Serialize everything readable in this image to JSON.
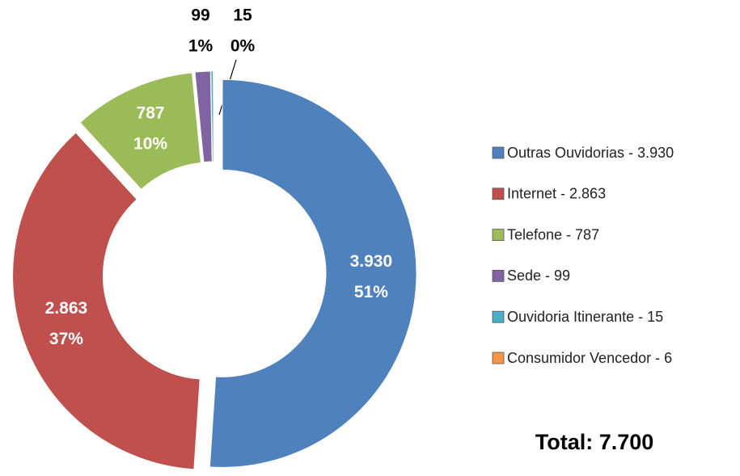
{
  "chart_data": {
    "type": "donut",
    "categories": [
      "Outras Ouvidorias - 3.930",
      "Internet - 2.863",
      "Telefone - 787",
      "Sede - 99",
      "Ouvidoria Itinerante - 15",
      "Consumidor Vencedor - 6"
    ],
    "values": [
      3930,
      2863,
      787,
      99,
      15,
      6
    ],
    "value_labels": [
      "3.930",
      "2.863",
      "787",
      "99",
      "15",
      null
    ],
    "percent_labels": [
      "51%",
      "37%",
      "10%",
      "1%",
      "0%",
      null
    ],
    "colors": [
      "#4f81bd",
      "#c0504d",
      "#9bbb59",
      "#8064a2",
      "#4bacc6",
      "#f79646"
    ],
    "legend": "right",
    "total": "Total: 7.700"
  }
}
